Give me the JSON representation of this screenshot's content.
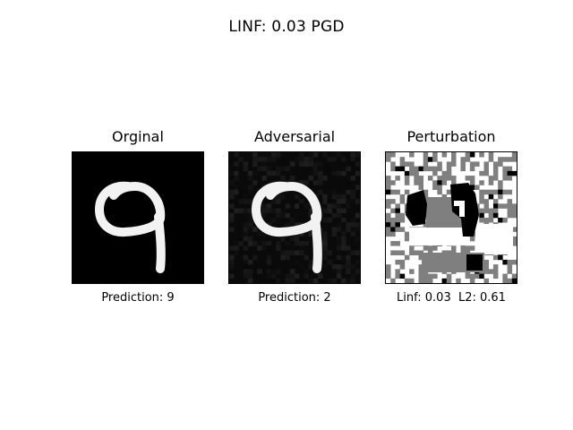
{
  "figure": {
    "title": "LINF: 0.03 PGD"
  },
  "panels": [
    {
      "title": "Orginal",
      "caption": "Prediction: 9"
    },
    {
      "title": "Adversarial",
      "caption": "Prediction: 2"
    },
    {
      "title": "Perturbation",
      "caption": "Linf: 0.03  L2: 0.61"
    }
  ],
  "colors": {
    "background": "#ffffff",
    "digit_stroke": "#f2f2f2",
    "image_background": "#000000",
    "perturbation_gray": "#7f7f7f"
  }
}
